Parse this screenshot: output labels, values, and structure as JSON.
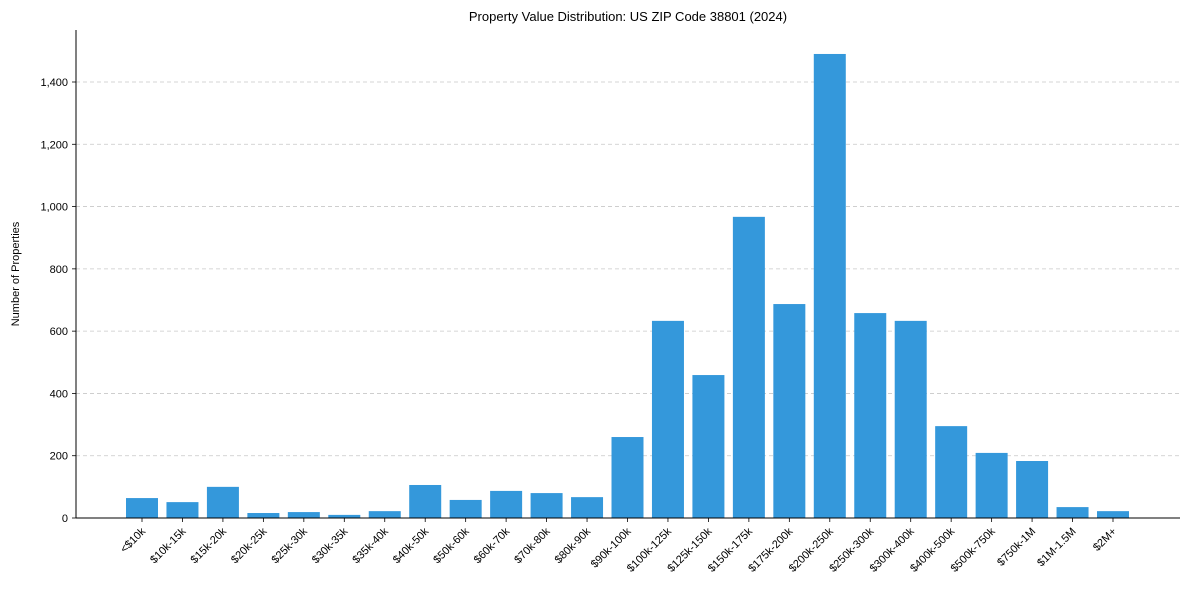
{
  "chart_data": {
    "type": "bar",
    "title": "Property Value Distribution: US ZIP Code 38801 (2024)",
    "xlabel": "",
    "ylabel": "Number of Properties",
    "ylim": [
      0,
      1560
    ],
    "yticks": [
      0,
      200,
      400,
      600,
      800,
      1000,
      1200,
      1400
    ],
    "ytick_labels": [
      "0",
      "200",
      "400",
      "600",
      "800",
      "1,000",
      "1,200",
      "1,400"
    ],
    "grid": "y-dashed",
    "bar_color": "#3498db",
    "categories": [
      "<$10k",
      "$10k-15k",
      "$15k-20k",
      "$20k-25k",
      "$25k-30k",
      "$30k-35k",
      "$35k-40k",
      "$40k-50k",
      "$50k-60k",
      "$60k-70k",
      "$70k-80k",
      "$80k-90k",
      "$90k-100k",
      "$100k-125k",
      "$125k-150k",
      "$150k-175k",
      "$175k-200k",
      "$200k-250k",
      "$250k-300k",
      "$300k-400k",
      "$400k-500k",
      "$500k-750k",
      "$750k-1M",
      "$1M-1.5M",
      "$2M+"
    ],
    "values": [
      64,
      51,
      100,
      16,
      19,
      10,
      22,
      106,
      58,
      87,
      80,
      67,
      260,
      633,
      459,
      967,
      687,
      1490,
      658,
      633,
      295,
      209,
      183,
      35,
      22
    ]
  }
}
